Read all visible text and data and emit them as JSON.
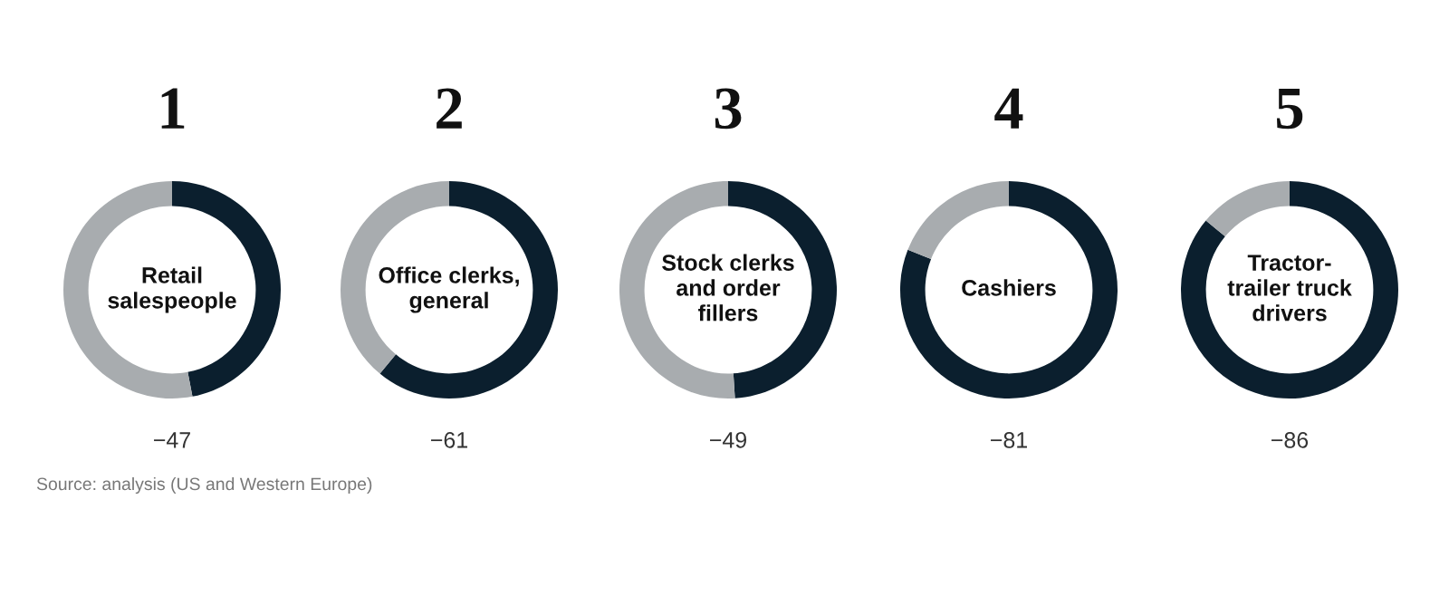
{
  "chart_data": [
    {
      "type": "donut",
      "title": "1",
      "categories": [
        null,
        null
      ],
      "values": [
        47,
        53
      ],
      "colors": [
        "#0b1f2e",
        "#a8acaf"
      ],
      "annotations": [
        "Retail\nsalespeople",
        "−47",
        "Source: analysis (US and Western Europe)"
      ]
    },
    {
      "type": "donut",
      "title": "2",
      "categories": [
        null,
        null
      ],
      "values": [
        61,
        39
      ],
      "colors": [
        "#0b1f2e",
        "#a8acaf"
      ],
      "annotations": [
        "Office clerks,\ngeneral",
        "−61"
      ]
    },
    {
      "type": "donut",
      "title": "3",
      "categories": [
        null,
        null
      ],
      "values": [
        49,
        51
      ],
      "colors": [
        "#0b1f2e",
        "#a8acaf"
      ],
      "annotations": [
        "Stock clerks\nand order\nfillers",
        "−49"
      ]
    },
    {
      "type": "donut",
      "title": "4",
      "categories": [
        null,
        null
      ],
      "values": [
        81,
        19
      ],
      "colors": [
        "#0b1f2e",
        "#a8acaf"
      ],
      "annotations": [
        "Cashiers",
        "−81"
      ]
    },
    {
      "type": "donut",
      "title": "5",
      "categories": [
        null,
        null
      ],
      "values": [
        86,
        14
      ],
      "colors": [
        "#0b1f2e",
        "#a8acaf"
      ],
      "annotations": [
        "Tractor-\ntrailer truck\ndrivers",
        "−86"
      ]
    }
  ]
}
